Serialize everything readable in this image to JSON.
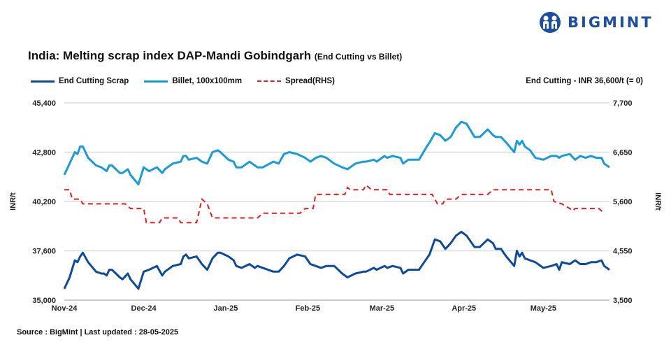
{
  "brand": {
    "name": "BIGMINT",
    "color": "#1b4fa0"
  },
  "title": "India: Melting scrap index DAP-Mandi Gobindgarh",
  "subtitle": "(End Cutting vs Billet)",
  "note": "End Cutting - INR 36,600/t (= 0)",
  "source": "Source : BigMint | Last updated : 28-05-2025",
  "chart_data": {
    "type": "line",
    "title": "India: Melting scrap index DAP-Mandi Gobindgarh (End Cutting vs Billet)",
    "ylabel": "INR/t",
    "y2label": "INR/t",
    "ylim": [
      35000,
      45400
    ],
    "yticks": [
      "35,000",
      "37,600",
      "40,200",
      "42,800",
      "45,400"
    ],
    "y2lim": [
      3500,
      7700
    ],
    "y2ticks": [
      "3,500",
      "4,550",
      "5,600",
      "6,650",
      "7,700"
    ],
    "xlim": [
      "2024-11-01",
      "2025-05-26"
    ],
    "xticks": [
      {
        "label": "Nov-24",
        "date": "2024-11-01"
      },
      {
        "label": "Dec-24",
        "date": "2024-12-01"
      },
      {
        "label": "Jan-25",
        "date": "2025-01-01"
      },
      {
        "label": "Feb-25",
        "date": "2025-02-01"
      },
      {
        "label": "Mar-25",
        "date": "2025-03-01"
      },
      {
        "label": "Apr-25",
        "date": "2025-04-01"
      },
      {
        "label": "May-25",
        "date": "2025-05-01"
      }
    ],
    "grid": true,
    "legend": "top-left",
    "x": [
      "2024-11-01",
      "2024-11-03",
      "2024-11-05",
      "2024-11-06",
      "2024-11-07",
      "2024-11-08",
      "2024-11-10",
      "2024-11-13",
      "2024-11-15",
      "2024-11-16",
      "2024-11-17",
      "2024-11-18",
      "2024-11-19",
      "2024-11-22",
      "2024-11-23",
      "2024-11-25",
      "2024-11-26",
      "2024-11-29",
      "2024-12-01",
      "2024-12-03",
      "2024-12-06",
      "2024-12-08",
      "2024-12-09",
      "2024-12-12",
      "2024-12-15",
      "2024-12-16",
      "2024-12-17",
      "2024-12-18",
      "2024-12-21",
      "2024-12-23",
      "2024-12-25",
      "2024-12-27",
      "2024-12-29",
      "2024-12-30",
      "2025-01-02",
      "2025-01-04",
      "2025-01-05",
      "2025-01-07",
      "2025-01-10",
      "2025-01-12",
      "2025-01-13",
      "2025-01-15",
      "2025-01-19",
      "2025-01-21",
      "2025-01-23",
      "2025-01-25",
      "2025-01-28",
      "2025-01-31",
      "2025-02-02",
      "2025-02-04",
      "2025-02-06",
      "2025-02-08",
      "2025-02-11",
      "2025-02-14",
      "2025-02-16",
      "2025-02-19",
      "2025-02-22",
      "2025-02-23",
      "2025-02-26",
      "2025-02-27",
      "2025-03-02",
      "2025-03-03",
      "2025-03-05",
      "2025-03-08",
      "2025-03-09",
      "2025-03-11",
      "2025-03-15",
      "2025-03-18",
      "2025-03-19",
      "2025-03-21",
      "2025-03-23",
      "2025-03-25",
      "2025-03-27",
      "2025-03-29",
      "2025-03-31",
      "2025-04-02",
      "2025-04-05",
      "2025-04-07",
      "2025-04-10",
      "2025-04-12",
      "2025-04-13",
      "2025-04-15",
      "2025-04-17",
      "2025-04-20",
      "2025-04-21",
      "2025-04-22",
      "2025-04-23",
      "2025-04-24",
      "2025-04-26",
      "2025-04-28",
      "2025-05-01",
      "2025-05-04",
      "2025-05-06",
      "2025-05-07",
      "2025-05-08",
      "2025-05-11",
      "2025-05-13",
      "2025-05-15",
      "2025-05-17",
      "2025-05-19",
      "2025-05-21",
      "2025-05-23",
      "2025-05-24",
      "2025-05-26"
    ],
    "series": [
      {
        "name": "End Cutting Scrap",
        "axis": "left",
        "color": "#0d4a9a",
        "style": "solid",
        "values": [
          35600,
          36200,
          37100,
          37000,
          37300,
          37500,
          37000,
          36500,
          36400,
          36400,
          36300,
          36600,
          36600,
          36200,
          36100,
          36400,
          36100,
          35600,
          36500,
          36600,
          36800,
          36300,
          36500,
          36800,
          36900,
          37300,
          37400,
          37200,
          37300,
          36900,
          36600,
          37200,
          37500,
          37500,
          37300,
          37100,
          36800,
          36700,
          36900,
          36700,
          36800,
          36700,
          36500,
          36500,
          36800,
          37200,
          37400,
          37300,
          36900,
          36800,
          36700,
          36800,
          36800,
          36400,
          36200,
          36400,
          36500,
          36500,
          36700,
          36600,
          36800,
          36700,
          36800,
          36700,
          36400,
          36600,
          36600,
          37200,
          37400,
          38200,
          38100,
          37700,
          38000,
          38400,
          38600,
          38400,
          37800,
          37800,
          38200,
          38000,
          37700,
          37700,
          37300,
          36800,
          37600,
          37300,
          37500,
          37200,
          37100,
          37000,
          36700,
          36800,
          36900,
          36600,
          37000,
          36900,
          37100,
          36900,
          36900,
          37000,
          37000,
          37100,
          36800,
          36600
        ]
      },
      {
        "name": "Billet, 100x100mm",
        "axis": "left",
        "color": "#1a9bd7",
        "style": "solid",
        "values": [
          41600,
          42200,
          42800,
          42700,
          43100,
          43100,
          42500,
          42100,
          42000,
          41900,
          41800,
          42100,
          42100,
          41700,
          41700,
          41900,
          41600,
          41100,
          42000,
          41800,
          42000,
          41700,
          41900,
          42200,
          42300,
          42600,
          42600,
          42400,
          42500,
          42300,
          42200,
          42800,
          42900,
          42800,
          42400,
          42300,
          42000,
          42000,
          42300,
          42100,
          42000,
          42000,
          42300,
          42200,
          42700,
          42800,
          42700,
          42500,
          42300,
          42500,
          42600,
          42500,
          42200,
          42000,
          41900,
          42200,
          42300,
          42300,
          42400,
          42300,
          42600,
          42500,
          42600,
          42500,
          42200,
          42400,
          42400,
          43100,
          43300,
          43800,
          43700,
          43400,
          43600,
          44100,
          44400,
          44300,
          43600,
          43600,
          44000,
          43700,
          43600,
          43600,
          43300,
          42800,
          43400,
          43200,
          43400,
          43100,
          42900,
          42500,
          42400,
          42600,
          42600,
          42500,
          42600,
          42700,
          42400,
          42600,
          42500,
          42600,
          42500,
          42500,
          42200,
          42000
        ]
      }
    ],
    "spread": {
      "name": "Spread(RHS)",
      "axis": "right",
      "color": "#e02020",
      "style": "dashed",
      "x": [
        "2024-11-01",
        "2024-11-03",
        "2024-11-04",
        "2024-11-07",
        "2024-11-08",
        "2024-11-24",
        "2024-11-26",
        "2024-12-01",
        "2024-12-02",
        "2024-12-07",
        "2024-12-08",
        "2024-12-14",
        "2024-12-15",
        "2024-12-21",
        "2024-12-23",
        "2024-12-25",
        "2024-12-27",
        "2025-01-13",
        "2025-01-15",
        "2025-01-29",
        "2025-01-31",
        "2025-02-03",
        "2025-02-04",
        "2025-02-15",
        "2025-02-16",
        "2025-02-17",
        "2025-02-22",
        "2025-02-23",
        "2025-02-25",
        "2025-03-03",
        "2025-03-04",
        "2025-03-20",
        "2025-03-22",
        "2025-03-24",
        "2025-03-25",
        "2025-03-29",
        "2025-03-31",
        "2025-04-10",
        "2025-04-12",
        "2025-05-04",
        "2025-05-05",
        "2025-05-08",
        "2025-05-11",
        "2025-05-12",
        "2025-05-13",
        "2025-05-22",
        "2025-05-24"
      ],
      "values": [
        5850,
        5850,
        5650,
        5650,
        5550,
        5550,
        5450,
        5450,
        5150,
        5150,
        5250,
        5250,
        5150,
        5150,
        5650,
        5550,
        5250,
        5250,
        5350,
        5350,
        5450,
        5450,
        5750,
        5750,
        5900,
        5850,
        5850,
        5950,
        5850,
        5850,
        5750,
        5750,
        5550,
        5550,
        5650,
        5650,
        5750,
        5750,
        5850,
        5850,
        5600,
        5550,
        5450,
        5400,
        5450,
        5450,
        5350
      ]
    }
  }
}
